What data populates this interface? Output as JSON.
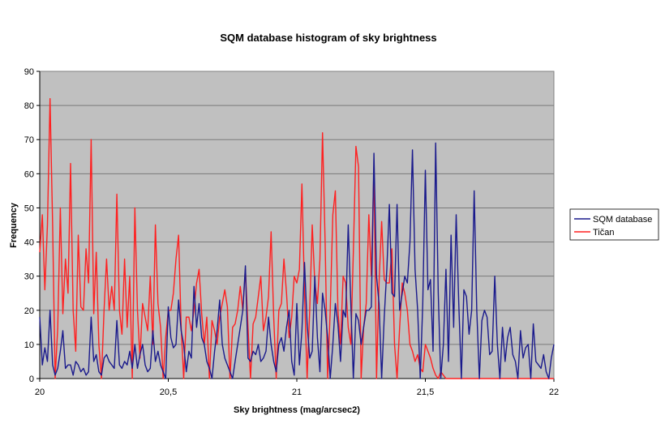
{
  "chart_data": {
    "type": "line",
    "title": "SQM database histogram of sky brightness",
    "xlabel": "Sky brightness (mag/arcsec2)",
    "ylabel": "Frequency",
    "xlim": [
      20,
      22
    ],
    "ylim": [
      0,
      90
    ],
    "x_ticks": [
      20,
      20.5,
      21,
      21.5,
      22
    ],
    "x_tick_labels": [
      "20",
      "20,5",
      "21",
      "21,5",
      "22"
    ],
    "y_ticks": [
      0,
      10,
      20,
      30,
      40,
      50,
      60,
      70,
      80,
      90
    ],
    "y_tick_labels": [
      "0",
      "10",
      "20",
      "30",
      "40",
      "50",
      "60",
      "70",
      "80",
      "90"
    ],
    "grid": "horizontal",
    "legend_position": "right",
    "plot_background": "#c0c0c0",
    "x_start": 20.0,
    "x_step": 0.01,
    "series": [
      {
        "name": "SQM database",
        "color": "#1a1a8c",
        "values": [
          18,
          4,
          9,
          5,
          20,
          4,
          1,
          3,
          8,
          14,
          3,
          4,
          4,
          1,
          5,
          4,
          2,
          3,
          1,
          2,
          18,
          5,
          7,
          2,
          1,
          6,
          7,
          5,
          4,
          3,
          17,
          4,
          3,
          5,
          4,
          8,
          3,
          10,
          3,
          7,
          10,
          4,
          2,
          3,
          14,
          5,
          8,
          4,
          2,
          0,
          21,
          12,
          9,
          10,
          23,
          14,
          10,
          2,
          8,
          6,
          27,
          15,
          22,
          12,
          10,
          5,
          3,
          0,
          8,
          14,
          23,
          10,
          6,
          4,
          2,
          0,
          5,
          10,
          15,
          20,
          33,
          6,
          5,
          8,
          7,
          10,
          5,
          6,
          8,
          18,
          10,
          5,
          2,
          10,
          12,
          8,
          15,
          20,
          5,
          1,
          22,
          4,
          14,
          34,
          16,
          6,
          8,
          30,
          12,
          2,
          25,
          20,
          12,
          0,
          10,
          22,
          16,
          5,
          20,
          18,
          45,
          22,
          0,
          19,
          17,
          10,
          15,
          20,
          20,
          21,
          66,
          30,
          22,
          0,
          18,
          32,
          51,
          25,
          24,
          51,
          20,
          25,
          30,
          28,
          40,
          67,
          32,
          20,
          0,
          22,
          61,
          26,
          29,
          8,
          69,
          25,
          0,
          10,
          32,
          5,
          42,
          15,
          48,
          22,
          0,
          26,
          24,
          13,
          20,
          55,
          20,
          0,
          17,
          20,
          18,
          7,
          8,
          30,
          10,
          0,
          15,
          5,
          12,
          15,
          7,
          5,
          0,
          14,
          6,
          9,
          10,
          0,
          16,
          5,
          4,
          3,
          7,
          2,
          0,
          6,
          10
        ]
      },
      {
        "name": "Tičan",
        "color": "#ff2020",
        "values": [
          37,
          48,
          26,
          45,
          82,
          45,
          0,
          15,
          50,
          19,
          35,
          25,
          63,
          20,
          8,
          42,
          21,
          20,
          38,
          28,
          70,
          19,
          37,
          10,
          0,
          20,
          35,
          20,
          27,
          20,
          54,
          20,
          13,
          35,
          15,
          30,
          0,
          50,
          20,
          6,
          22,
          18,
          14,
          30,
          10,
          45,
          22,
          15,
          0,
          12,
          20,
          20,
          25,
          35,
          42,
          15,
          0,
          18,
          18,
          14,
          20,
          28,
          32,
          19,
          10,
          18,
          0,
          17,
          14,
          10,
          18,
          22,
          26,
          21,
          0,
          15,
          16,
          20,
          27,
          20,
          32,
          15,
          0,
          16,
          18,
          24,
          30,
          14,
          18,
          24,
          43,
          18,
          0,
          20,
          22,
          35,
          25,
          12,
          18,
          30,
          28,
          32,
          57,
          25,
          0,
          20,
          45,
          28,
          22,
          35,
          72,
          40,
          0,
          20,
          48,
          55,
          20,
          10,
          30,
          28,
          15,
          10,
          37,
          68,
          62,
          0,
          15,
          22,
          48,
          30,
          62,
          0,
          28,
          46,
          29,
          28,
          28,
          38,
          10,
          0,
          15,
          28,
          25,
          20,
          10,
          8,
          5,
          7,
          3,
          2,
          10,
          8,
          6,
          3,
          1,
          0,
          2,
          1,
          0,
          0,
          0,
          0,
          0,
          0,
          0,
          0,
          0,
          0,
          0,
          0,
          0,
          0,
          0,
          0,
          0,
          0,
          0,
          0,
          0,
          0,
          0,
          0,
          0,
          0,
          0,
          0,
          0,
          0,
          0,
          0,
          0,
          0,
          0,
          0,
          0,
          0,
          0,
          0,
          0,
          0,
          0
        ]
      }
    ]
  }
}
